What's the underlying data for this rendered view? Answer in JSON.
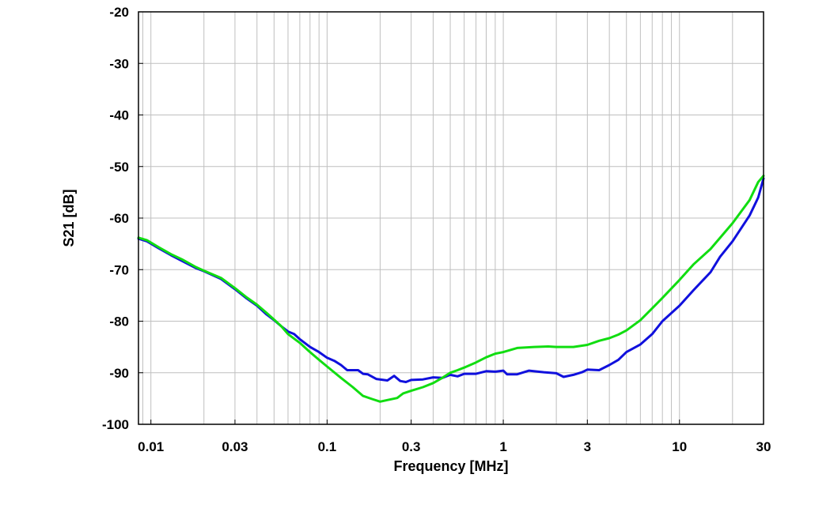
{
  "chart_data": {
    "type": "line",
    "title": "",
    "xlabel": "Frequency [MHz]",
    "ylabel": "S21 [dB]",
    "xscale": "log",
    "xlim": [
      0.0085,
      30
    ],
    "ylim": [
      -100,
      -20
    ],
    "grid": true,
    "legend": "none",
    "x_ticks": [
      {
        "value": 0.01,
        "label": "0.01"
      },
      {
        "value": 0.03,
        "label": "0.03"
      },
      {
        "value": 0.1,
        "label": "0.1"
      },
      {
        "value": 0.3,
        "label": "0.3"
      },
      {
        "value": 1,
        "label": "1"
      },
      {
        "value": 3,
        "label": "3"
      },
      {
        "value": 10,
        "label": "10"
      },
      {
        "value": 30,
        "label": "30"
      }
    ],
    "y_ticks": [
      {
        "value": -20,
        "label": "-20"
      },
      {
        "value": -30,
        "label": "-30"
      },
      {
        "value": -40,
        "label": "-40"
      },
      {
        "value": -50,
        "label": "-50"
      },
      {
        "value": -60,
        "label": "-60"
      },
      {
        "value": -70,
        "label": "-70"
      },
      {
        "value": -80,
        "label": "-80"
      },
      {
        "value": -90,
        "label": "-90"
      },
      {
        "value": -100,
        "label": "-100"
      }
    ],
    "series": [
      {
        "color": "#1010dd",
        "points": [
          [
            0.0085,
            -64.0
          ],
          [
            0.0095,
            -64.5
          ],
          [
            0.011,
            -65.8
          ],
          [
            0.013,
            -67.2
          ],
          [
            0.015,
            -68.3
          ],
          [
            0.018,
            -69.7
          ],
          [
            0.02,
            -70.3
          ],
          [
            0.025,
            -71.8
          ],
          [
            0.03,
            -73.8
          ],
          [
            0.035,
            -75.6
          ],
          [
            0.04,
            -77.0
          ],
          [
            0.045,
            -78.6
          ],
          [
            0.05,
            -79.8
          ],
          [
            0.055,
            -81.0
          ],
          [
            0.06,
            -82.0
          ],
          [
            0.065,
            -82.5
          ],
          [
            0.07,
            -83.5
          ],
          [
            0.08,
            -85.0
          ],
          [
            0.09,
            -86.0
          ],
          [
            0.1,
            -87.1
          ],
          [
            0.11,
            -87.7
          ],
          [
            0.12,
            -88.5
          ],
          [
            0.13,
            -89.5
          ],
          [
            0.15,
            -89.5
          ],
          [
            0.16,
            -90.2
          ],
          [
            0.17,
            -90.3
          ],
          [
            0.19,
            -91.2
          ],
          [
            0.22,
            -91.5
          ],
          [
            0.24,
            -90.6
          ],
          [
            0.26,
            -91.6
          ],
          [
            0.28,
            -91.8
          ],
          [
            0.3,
            -91.4
          ],
          [
            0.35,
            -91.3
          ],
          [
            0.4,
            -90.9
          ],
          [
            0.45,
            -91.0
          ],
          [
            0.5,
            -90.4
          ],
          [
            0.55,
            -90.7
          ],
          [
            0.6,
            -90.2
          ],
          [
            0.7,
            -90.2
          ],
          [
            0.8,
            -89.7
          ],
          [
            0.9,
            -89.8
          ],
          [
            1.0,
            -89.6
          ],
          [
            1.05,
            -90.3
          ],
          [
            1.2,
            -90.3
          ],
          [
            1.4,
            -89.6
          ],
          [
            1.7,
            -89.9
          ],
          [
            2.0,
            -90.1
          ],
          [
            2.2,
            -90.8
          ],
          [
            2.5,
            -90.4
          ],
          [
            2.8,
            -89.9
          ],
          [
            3.0,
            -89.4
          ],
          [
            3.5,
            -89.5
          ],
          [
            4.0,
            -88.5
          ],
          [
            4.5,
            -87.5
          ],
          [
            5.0,
            -86.0
          ],
          [
            6.0,
            -84.5
          ],
          [
            7.0,
            -82.5
          ],
          [
            8.0,
            -80.0
          ],
          [
            10.0,
            -77.0
          ],
          [
            12.0,
            -74.0
          ],
          [
            15.0,
            -70.5
          ],
          [
            17.0,
            -67.5
          ],
          [
            20.0,
            -64.5
          ],
          [
            25.0,
            -59.5
          ],
          [
            28.0,
            -56.0
          ],
          [
            30.0,
            -52.3
          ]
        ]
      },
      {
        "color": "#11dd11",
        "points": [
          [
            0.0085,
            -63.8
          ],
          [
            0.0095,
            -64.3
          ],
          [
            0.011,
            -65.6
          ],
          [
            0.013,
            -67.0
          ],
          [
            0.015,
            -68.0
          ],
          [
            0.018,
            -69.5
          ],
          [
            0.02,
            -70.2
          ],
          [
            0.025,
            -71.6
          ],
          [
            0.03,
            -73.6
          ],
          [
            0.035,
            -75.4
          ],
          [
            0.04,
            -76.8
          ],
          [
            0.045,
            -78.3
          ],
          [
            0.05,
            -79.7
          ],
          [
            0.055,
            -81.0
          ],
          [
            0.06,
            -82.5
          ],
          [
            0.07,
            -84.2
          ],
          [
            0.08,
            -86.0
          ],
          [
            0.09,
            -87.5
          ],
          [
            0.1,
            -88.8
          ],
          [
            0.12,
            -91.0
          ],
          [
            0.14,
            -92.8
          ],
          [
            0.16,
            -94.5
          ],
          [
            0.18,
            -95.1
          ],
          [
            0.2,
            -95.6
          ],
          [
            0.22,
            -95.3
          ],
          [
            0.25,
            -94.9
          ],
          [
            0.27,
            -94.0
          ],
          [
            0.3,
            -93.5
          ],
          [
            0.35,
            -92.8
          ],
          [
            0.4,
            -92.0
          ],
          [
            0.45,
            -91.0
          ],
          [
            0.5,
            -90.0
          ],
          [
            0.55,
            -89.5
          ],
          [
            0.6,
            -89.0
          ],
          [
            0.7,
            -88.0
          ],
          [
            0.8,
            -87.0
          ],
          [
            0.9,
            -86.3
          ],
          [
            1.0,
            -86.0
          ],
          [
            1.2,
            -85.2
          ],
          [
            1.5,
            -85.0
          ],
          [
            1.8,
            -84.9
          ],
          [
            2.0,
            -85.0
          ],
          [
            2.5,
            -85.0
          ],
          [
            3.0,
            -84.6
          ],
          [
            3.5,
            -83.8
          ],
          [
            4.0,
            -83.3
          ],
          [
            4.5,
            -82.6
          ],
          [
            5.0,
            -81.8
          ],
          [
            6.0,
            -79.8
          ],
          [
            7.0,
            -77.5
          ],
          [
            8.0,
            -75.5
          ],
          [
            10.0,
            -72.0
          ],
          [
            12.0,
            -69.0
          ],
          [
            15.0,
            -66.0
          ],
          [
            20.0,
            -61.0
          ],
          [
            25.0,
            -56.5
          ],
          [
            28.0,
            -53.0
          ],
          [
            30.0,
            -51.8
          ]
        ]
      }
    ]
  }
}
